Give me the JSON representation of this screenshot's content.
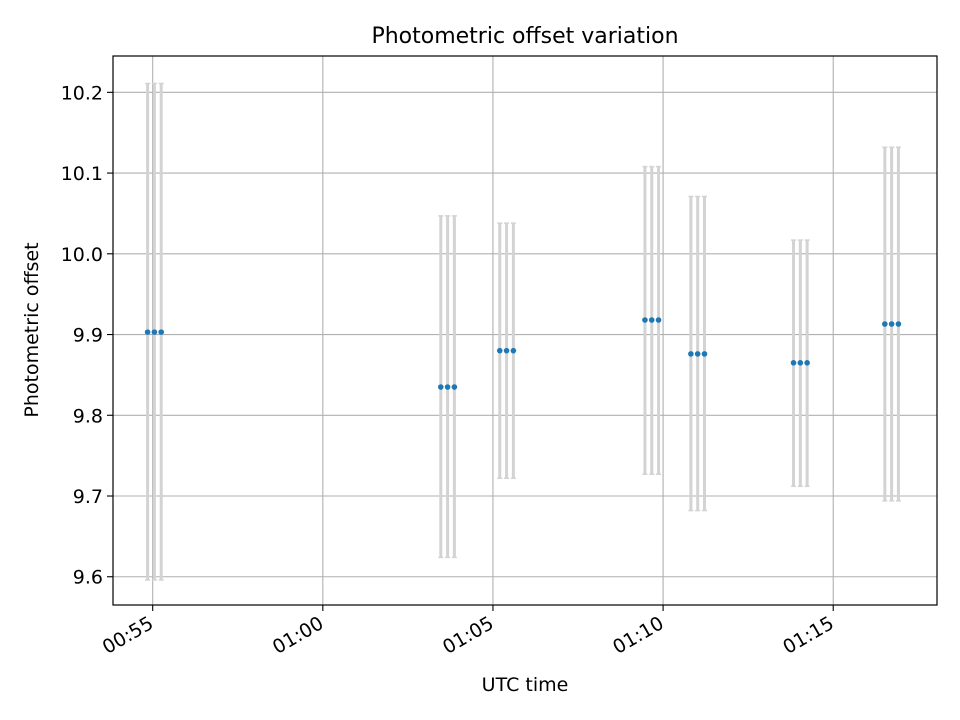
{
  "chart_data": {
    "type": "scatter",
    "title": "Photometric offset variation",
    "xlabel": "UTC time",
    "ylabel": "Photometric offset",
    "xlim": [
      "00:53:50",
      "01:18:03"
    ],
    "ylim": [
      9.565,
      10.245
    ],
    "grid": true,
    "x_ticks": [
      "00:55",
      "01:00",
      "01:05",
      "01:10",
      "01:15"
    ],
    "y_ticks": [
      "9.6",
      "9.7",
      "9.8",
      "9.9",
      "10.0",
      "10.1",
      "10.2"
    ],
    "points_per_group_note": "",
    "series": [
      {
        "marker_color": "#1f77b4",
        "errorbar_color": "#d3d3d3",
        "points": [
          {
            "x": "00:54:51",
            "y": 9.903,
            "ylow": 9.596,
            "yhigh": 10.211
          },
          {
            "x": "00:55:03",
            "y": 9.903,
            "ylow": 9.596,
            "yhigh": 10.211
          },
          {
            "x": "00:55:15",
            "y": 9.903,
            "ylow": 9.596,
            "yhigh": 10.211
          },
          {
            "x": "01:03:28",
            "y": 9.835,
            "ylow": 9.624,
            "yhigh": 10.047
          },
          {
            "x": "01:03:40",
            "y": 9.835,
            "ylow": 9.624,
            "yhigh": 10.047
          },
          {
            "x": "01:03:52",
            "y": 9.835,
            "ylow": 9.624,
            "yhigh": 10.047
          },
          {
            "x": "01:05:12",
            "y": 9.88,
            "ylow": 9.722,
            "yhigh": 10.038
          },
          {
            "x": "01:05:24",
            "y": 9.88,
            "ylow": 9.722,
            "yhigh": 10.038
          },
          {
            "x": "01:05:36",
            "y": 9.88,
            "ylow": 9.722,
            "yhigh": 10.038
          },
          {
            "x": "01:09:28",
            "y": 9.918,
            "ylow": 9.727,
            "yhigh": 10.108
          },
          {
            "x": "01:09:40",
            "y": 9.918,
            "ylow": 9.727,
            "yhigh": 10.108
          },
          {
            "x": "01:09:52",
            "y": 9.918,
            "ylow": 9.727,
            "yhigh": 10.108
          },
          {
            "x": "01:10:49",
            "y": 9.876,
            "ylow": 9.682,
            "yhigh": 10.071
          },
          {
            "x": "01:11:01",
            "y": 9.876,
            "ylow": 9.682,
            "yhigh": 10.071
          },
          {
            "x": "01:11:13",
            "y": 9.876,
            "ylow": 9.682,
            "yhigh": 10.071
          },
          {
            "x": "01:13:50",
            "y": 9.865,
            "ylow": 9.712,
            "yhigh": 10.017
          },
          {
            "x": "01:14:02",
            "y": 9.865,
            "ylow": 9.712,
            "yhigh": 10.017
          },
          {
            "x": "01:14:14",
            "y": 9.865,
            "ylow": 9.712,
            "yhigh": 10.017
          },
          {
            "x": "01:16:31",
            "y": 9.913,
            "ylow": 9.694,
            "yhigh": 10.132
          },
          {
            "x": "01:16:43",
            "y": 9.913,
            "ylow": 9.694,
            "yhigh": 10.132
          },
          {
            "x": "01:16:55",
            "y": 9.913,
            "ylow": 9.694,
            "yhigh": 10.132
          }
        ]
      }
    ]
  }
}
